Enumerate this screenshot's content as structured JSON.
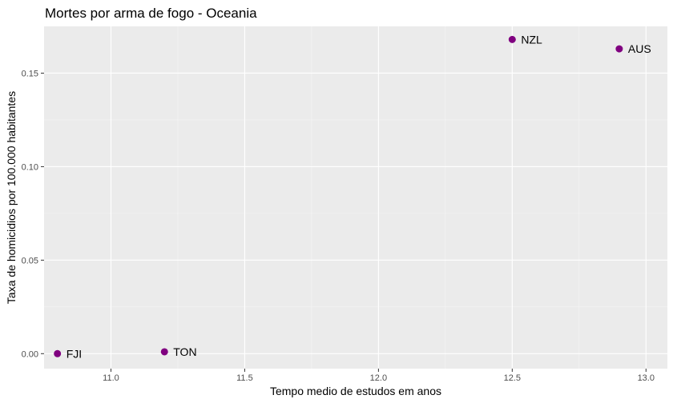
{
  "chart_data": {
    "type": "scatter",
    "title": "Mortes por arma de fogo - Oceania",
    "xlabel": "Tempo medio de estudos em anos",
    "ylabel": "Taxa de homicidios por 100.000 habitantes",
    "xlim": [
      10.75,
      13.08
    ],
    "ylim": [
      -0.008,
      0.175
    ],
    "x_ticks": [
      11.0,
      11.5,
      12.0,
      12.5,
      13.0
    ],
    "x_tick_labels": [
      "11.0",
      "11.5",
      "12.0",
      "12.5",
      "13.0"
    ],
    "y_ticks": [
      0.0,
      0.05,
      0.1,
      0.15
    ],
    "y_tick_labels": [
      "0.00",
      "0.05",
      "0.10",
      "0.15"
    ],
    "grid": true,
    "colors": {
      "panel": "#ebebeb",
      "grid_major": "#ffffff",
      "grid_minor": "#f5f5f5",
      "point": "#800080"
    },
    "series": [
      {
        "points": [
          {
            "label": "FJI",
            "x": 10.8,
            "y": 0.0
          },
          {
            "label": "TON",
            "x": 11.2,
            "y": 0.001
          },
          {
            "label": "NZL",
            "x": 12.5,
            "y": 0.168
          },
          {
            "label": "AUS",
            "x": 12.9,
            "y": 0.163
          }
        ]
      }
    ]
  }
}
